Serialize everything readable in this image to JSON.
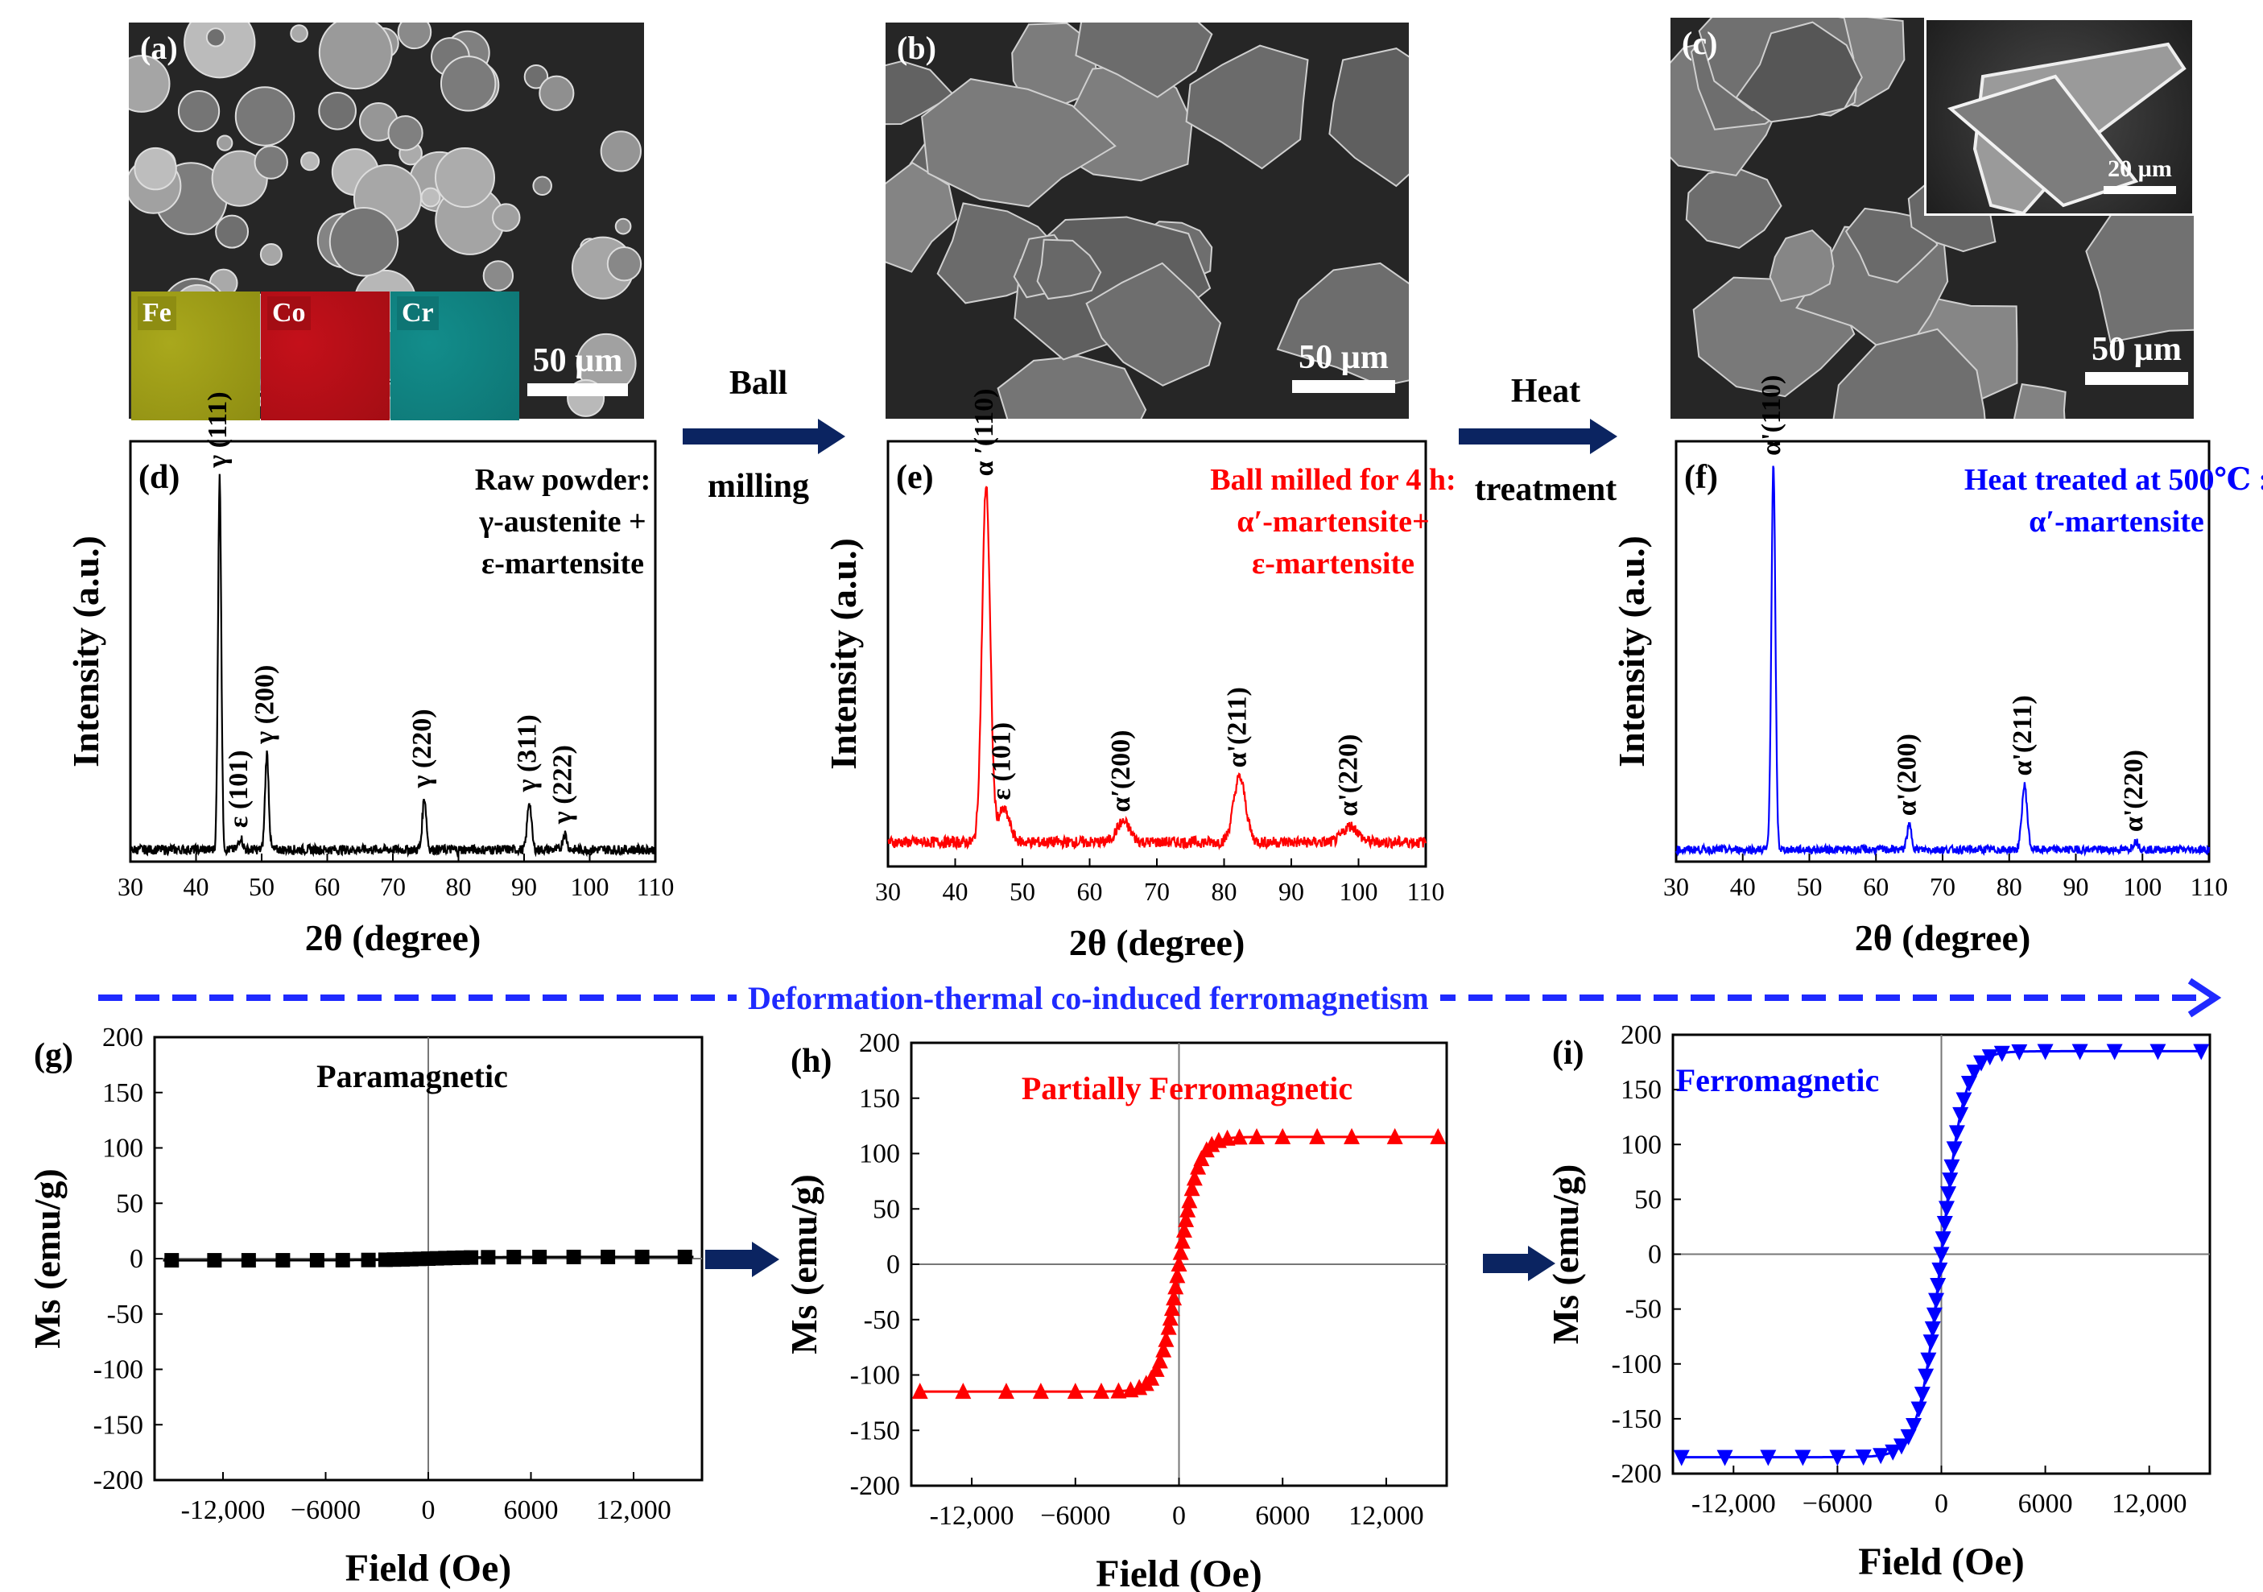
{
  "sem": {
    "a": {
      "label": "(a)",
      "scale": "50 µm"
    },
    "b": {
      "label": "(b)",
      "scale": "50 µm"
    },
    "c": {
      "label": "(c)",
      "scale": "50 µm",
      "inset_scale": "20 µm"
    },
    "eds": [
      {
        "el": "Fe",
        "color": "#a9a81c",
        "tag": "#8e8d12"
      },
      {
        "el": "Co",
        "color": "#c4101a",
        "tag": "#a40d14"
      },
      {
        "el": "Cr",
        "color": "#128d8b",
        "tag": "#0e7574"
      }
    ]
  },
  "process": {
    "step1": {
      "line1": "Ball",
      "line2": "milling"
    },
    "step2": {
      "line1": "Heat",
      "line2": "treatment"
    },
    "banner": "Deformation-thermal  co-induced ferromagnetism",
    "arrow_color": "#0b2461",
    "banner_color": "#1f2aff"
  },
  "chart_data": [
    {
      "id": "d",
      "type": "line",
      "panel_label": "(d)",
      "title_lines": [
        "Raw powder:",
        "γ-austenite +",
        "ε-martensite"
      ],
      "color": "#000000",
      "title_color": "#000000",
      "xlabel": "2θ  (degree)",
      "ylabel": "Intensity (a.u.)",
      "xlim": [
        30,
        110
      ],
      "ylim": [
        0,
        1.05
      ],
      "xticks": [
        30,
        40,
        50,
        60,
        70,
        80,
        90,
        100,
        110
      ],
      "baseline": 0.03,
      "noise": 0.012,
      "peaks": [
        {
          "x": 43.6,
          "h": 0.93,
          "w": 0.25,
          "label": "γ (111)"
        },
        {
          "x": 46.8,
          "h": 0.03,
          "w": 0.3,
          "label": "ε  (101)"
        },
        {
          "x": 50.8,
          "h": 0.24,
          "w": 0.28,
          "label": "γ (200)"
        },
        {
          "x": 74.8,
          "h": 0.13,
          "w": 0.3,
          "label": "γ (220)"
        },
        {
          "x": 90.8,
          "h": 0.12,
          "w": 0.32,
          "label": "γ (311)"
        },
        {
          "x": 96.2,
          "h": 0.04,
          "w": 0.32,
          "label": "γ (222)"
        }
      ]
    },
    {
      "id": "e",
      "type": "line",
      "panel_label": "(e)",
      "title_lines": [
        "Ball milled for 4 h:",
        "α′-martensite+",
        "ε-martensite"
      ],
      "color": "#ff0000",
      "title_color": "#ff0000",
      "xlabel": "2θ  (degree)",
      "ylabel": "Intensity (a.u.)",
      "xlim": [
        30,
        110
      ],
      "ylim": [
        0,
        1.05
      ],
      "xticks": [
        30,
        40,
        50,
        60,
        70,
        80,
        90,
        100,
        110
      ],
      "baseline": 0.06,
      "noise": 0.014,
      "peaks": [
        {
          "x": 44.6,
          "h": 0.88,
          "w": 0.6,
          "label": "α ′(110)"
        },
        {
          "x": 47.2,
          "h": 0.08,
          "w": 0.9,
          "label": "ε  (101)"
        },
        {
          "x": 65.0,
          "h": 0.05,
          "w": 1.0,
          "label": "α′(200)"
        },
        {
          "x": 82.3,
          "h": 0.16,
          "w": 0.9,
          "label": "α'(211)"
        },
        {
          "x": 98.8,
          "h": 0.04,
          "w": 1.1,
          "label": "α'(220)"
        }
      ]
    },
    {
      "id": "f",
      "type": "line",
      "panel_label": "(f)",
      "title_lines": [
        "Heat treated at 500℃ :",
        "α′-martensite"
      ],
      "color": "#0000ff",
      "title_color": "#0000ff",
      "xlabel": "2θ  (degree)",
      "ylabel": "Intensity (a.u.)",
      "xlim": [
        30,
        110
      ],
      "ylim": [
        0,
        1.05
      ],
      "xticks": [
        30,
        40,
        50,
        60,
        70,
        80,
        90,
        100,
        110
      ],
      "baseline": 0.03,
      "noise": 0.01,
      "peaks": [
        {
          "x": 44.6,
          "h": 0.96,
          "w": 0.3,
          "label": "α'(110)"
        },
        {
          "x": 65.0,
          "h": 0.06,
          "w": 0.35,
          "label": "α'(200)"
        },
        {
          "x": 82.3,
          "h": 0.16,
          "w": 0.4,
          "label": "α'(211)"
        },
        {
          "x": 99.0,
          "h": 0.02,
          "w": 0.45,
          "label": "α'(220)"
        }
      ]
    },
    {
      "id": "g",
      "type": "scatter",
      "panel_label": "(g)",
      "title": "Paramagnetic",
      "color": "#000000",
      "title_color": "#000000",
      "marker": "square",
      "xlabel": "Field (Oe)",
      "ylabel": "Ms (emu/g)",
      "xlim": [
        -16000,
        16000
      ],
      "ylim": [
        -200,
        200
      ],
      "xticks": [
        -12000,
        -6000,
        0,
        6000,
        12000
      ],
      "xtick_labels": [
        "-12,000",
        "−6000",
        "0",
        "6000",
        "12,000"
      ],
      "yticks": [
        -200,
        -150,
        -100,
        -50,
        0,
        50,
        100,
        150,
        200
      ],
      "ms": 1.5,
      "k": 3000,
      "x": [
        -15000,
        -12500,
        -10500,
        -8500,
        -6500,
        -5000,
        -3500,
        -2500,
        -2000,
        -1500,
        -1000,
        -500,
        0,
        500,
        1000,
        1500,
        2000,
        2500,
        3500,
        5000,
        6500,
        8500,
        10500,
        12500,
        15000
      ]
    },
    {
      "id": "h",
      "type": "scatter",
      "panel_label": "(h)",
      "title": "Partially Ferromagnetic",
      "color": "#ff0000",
      "title_color": "#ff0000",
      "marker": "triangle-up",
      "xlabel": "Field (Oe)",
      "ylabel": "Ms (emu/g)",
      "xlim": [
        -15500,
        15500
      ],
      "ylim": [
        -200,
        200
      ],
      "xticks": [
        -12000,
        -6000,
        0,
        6000,
        12000
      ],
      "xtick_labels": [
        "-12,000",
        "−6000",
        "0",
        "6000",
        "12,000"
      ],
      "yticks": [
        -200,
        -150,
        -100,
        -50,
        0,
        50,
        100,
        150,
        200
      ],
      "ms": 115,
      "k": 1100,
      "x": [
        -15000,
        -12500,
        -10000,
        -8000,
        -6000,
        -4500,
        -3500,
        -2800,
        -2300,
        -1900,
        -1600,
        -1300,
        -1100,
        -900,
        -750,
        -600,
        -500,
        -400,
        -300,
        -200,
        -100,
        0,
        100,
        200,
        300,
        400,
        500,
        600,
        750,
        900,
        1100,
        1300,
        1600,
        1900,
        2300,
        2800,
        3500,
        4500,
        6000,
        8000,
        10000,
        12500,
        15000
      ]
    },
    {
      "id": "i",
      "type": "scatter",
      "panel_label": "(i)",
      "title": "Ferromagnetic",
      "color": "#0000ff",
      "title_color": "#0000ff",
      "marker": "triangle-down",
      "xlabel": "Field (Oe)",
      "ylabel": "Ms (emu/g)",
      "xlim": [
        -15500,
        15500
      ],
      "ylim": [
        -200,
        200
      ],
      "xticks": [
        -12000,
        -6000,
        0,
        6000,
        12000
      ],
      "xtick_labels": [
        "-12,000",
        "−6000",
        "0",
        "6000",
        "12,000"
      ],
      "yticks": [
        -200,
        -150,
        -100,
        -50,
        0,
        50,
        100,
        150,
        200
      ],
      "ms": 185,
      "k": 1300,
      "x": [
        -15000,
        -12500,
        -10000,
        -8000,
        -6000,
        -4500,
        -3500,
        -2800,
        -2300,
        -1900,
        -1600,
        -1300,
        -1100,
        -900,
        -750,
        -600,
        -500,
        -400,
        -300,
        -200,
        -100,
        0,
        100,
        200,
        300,
        400,
        500,
        600,
        750,
        900,
        1100,
        1300,
        1600,
        1900,
        2300,
        2800,
        3500,
        4500,
        6000,
        8000,
        10000,
        12500,
        15000
      ]
    }
  ]
}
